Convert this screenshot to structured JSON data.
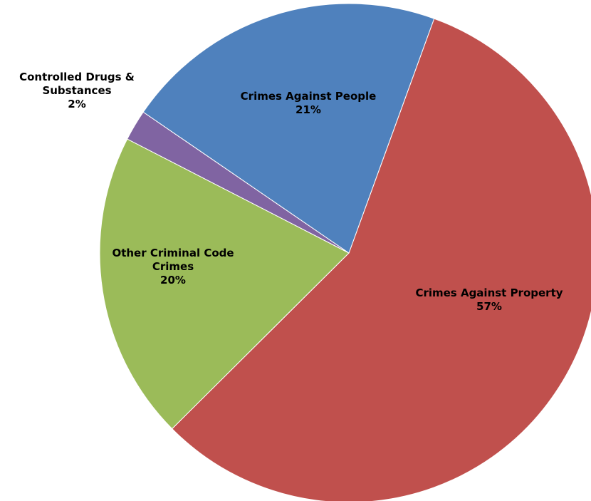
{
  "chart_data": {
    "type": "pie",
    "title": "",
    "slices": [
      {
        "label": "Crimes Against Property",
        "display_label": [
          "Crimes Against Property"
        ],
        "value": 57,
        "value_label": "57%",
        "color": "#c0504d"
      },
      {
        "label": "Other Criminal Code Crimes",
        "display_label": [
          "Other Criminal Code",
          "Crimes"
        ],
        "value": 20,
        "value_label": "20%",
        "color": "#9bbb59"
      },
      {
        "label": "Controlled Drugs & Substances",
        "display_label": [
          "Controlled Drugs &",
          "Substances"
        ],
        "value": 2,
        "value_label": "2%",
        "color": "#8064a2"
      },
      {
        "label": "Crimes Against People",
        "display_label": [
          "Crimes Against People"
        ],
        "value": 21,
        "value_label": "21%",
        "color": "#4f81bd"
      }
    ]
  }
}
